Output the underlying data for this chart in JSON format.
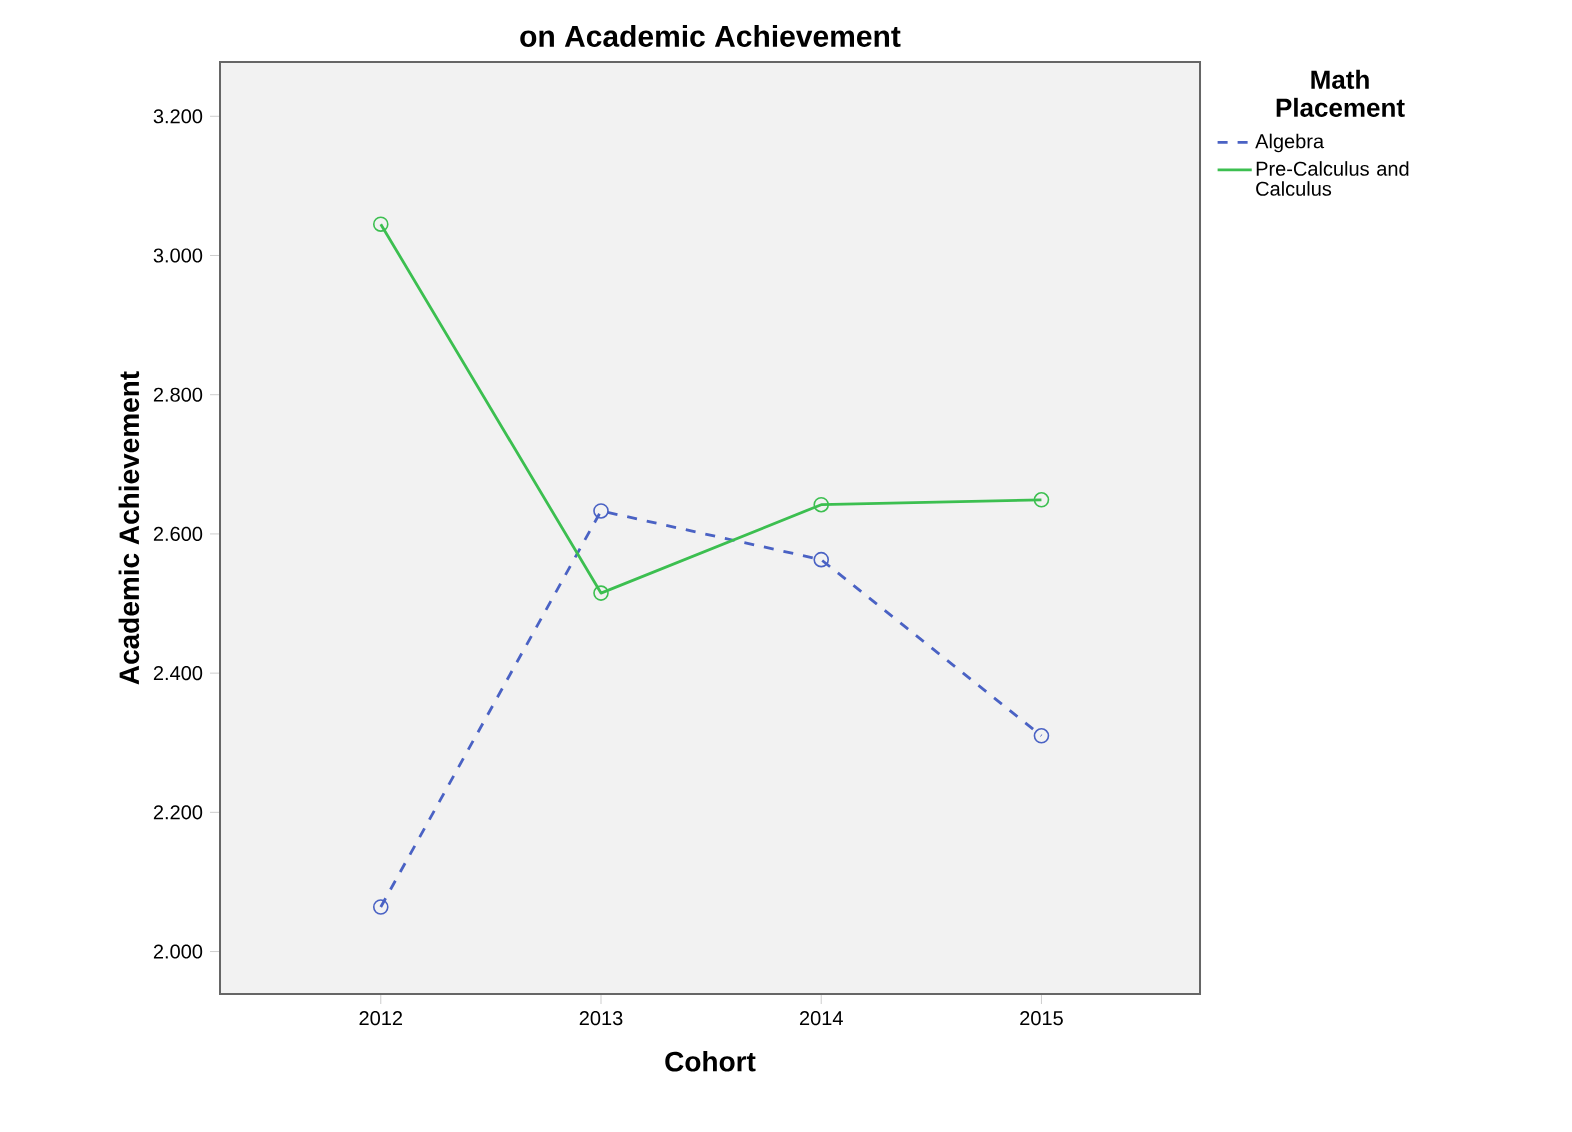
{
  "chart_data": {
    "type": "line",
    "title": "on Academic Achievement",
    "xlabel": "Cohort",
    "ylabel": "Academic Achievement",
    "legend_title": "Math Placement",
    "categories": [
      "2012",
      "2013",
      "2014",
      "2015"
    ],
    "ylim": [
      1.939,
      3.278
    ],
    "yticks": [
      {
        "value": 2.0,
        "label": "2.000"
      },
      {
        "value": 2.2,
        "label": "2.200"
      },
      {
        "value": 2.4,
        "label": "2.400"
      },
      {
        "value": 2.6,
        "label": "2.600"
      },
      {
        "value": 2.8,
        "label": "2.800"
      },
      {
        "value": 3.0,
        "label": "3.000"
      },
      {
        "value": 3.2,
        "label": "3.200"
      }
    ],
    "series": [
      {
        "name": "Algebra",
        "color": "#4a62c4",
        "line_style": "dashed",
        "values": [
          2.064,
          2.633,
          2.563,
          2.31
        ]
      },
      {
        "name": "Pre-Calculus and Calculus",
        "color": "#3cbf50",
        "line_style": "solid",
        "values": [
          3.045,
          2.515,
          2.642,
          2.649
        ]
      }
    ],
    "marker": "circle",
    "legend": "top right",
    "grid": false
  }
}
